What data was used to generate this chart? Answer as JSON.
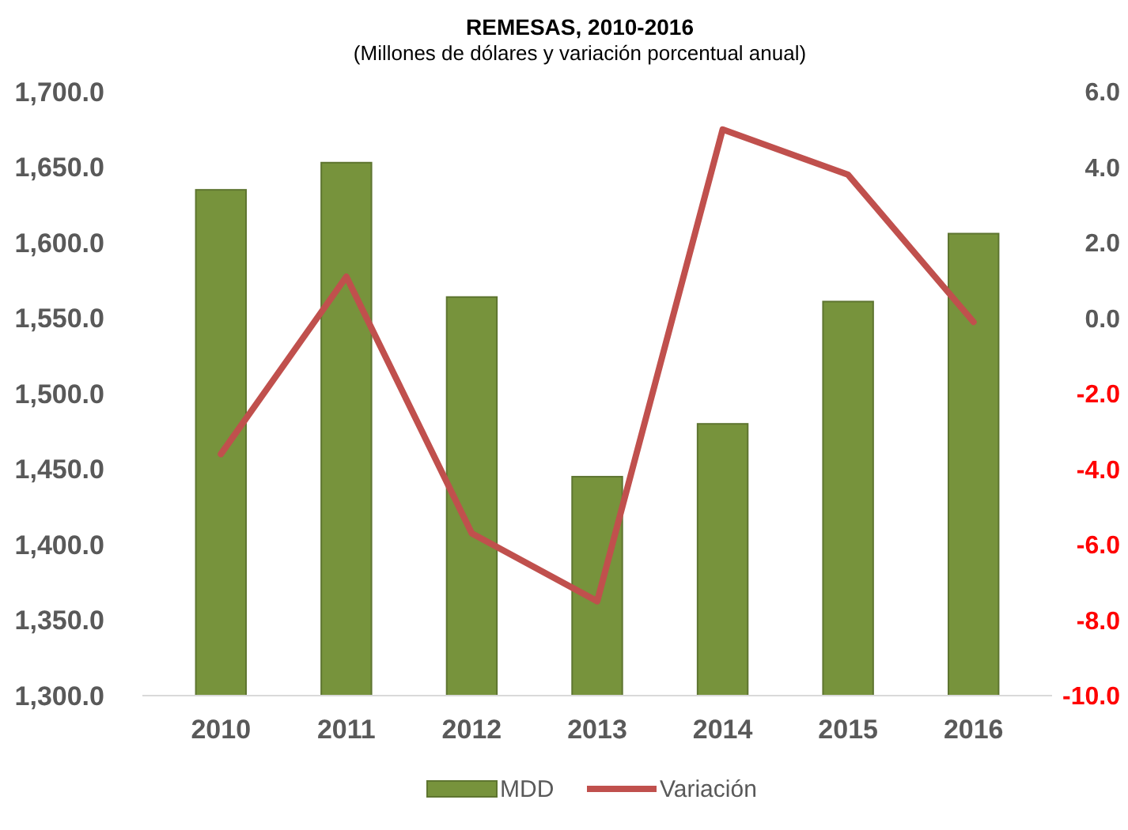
{
  "chart_data": {
    "type": "bar",
    "title": "REMESAS, 2010-2016",
    "subtitle": "(Millones de dólares y variación porcentual anual)",
    "categories": [
      "2010",
      "2011",
      "2012",
      "2013",
      "2014",
      "2015",
      "2016"
    ],
    "series": [
      {
        "name": "MDD",
        "color": "#77933c",
        "values": [
          1635,
          1653,
          1564,
          1445,
          1480,
          1561,
          1606
        ]
      },
      {
        "name": "Variación",
        "type": "line",
        "axis": "y2",
        "color": "#c0504d",
        "values": [
          -3.6,
          1.1,
          -5.7,
          -7.5,
          5.0,
          3.8,
          -0.1
        ]
      }
    ],
    "ylim": [
      1300,
      1700
    ],
    "yticks": [
      {
        "value": 1300,
        "label": "1,300.0"
      },
      {
        "value": 1350,
        "label": "1,350.0"
      },
      {
        "value": 1400,
        "label": "1,400.0"
      },
      {
        "value": 1450,
        "label": "1,450.0"
      },
      {
        "value": 1500,
        "label": "1,500.0"
      },
      {
        "value": 1550,
        "label": "1,550.0"
      },
      {
        "value": 1600,
        "label": "1,600.0"
      },
      {
        "value": 1650,
        "label": "1,650.0"
      },
      {
        "value": 1700,
        "label": "1,700.0"
      }
    ],
    "y2lim": [
      -10,
      6
    ],
    "y2ticks": [
      {
        "value": -10,
        "label": "-10.0"
      },
      {
        "value": -8,
        "label": "-8.0"
      },
      {
        "value": -6,
        "label": "-6.0"
      },
      {
        "value": -4,
        "label": "-4.0"
      },
      {
        "value": -2,
        "label": "-2.0"
      },
      {
        "value": 0,
        "label": "0.0"
      },
      {
        "value": 2,
        "label": "2.0"
      },
      {
        "value": 4,
        "label": "4.0"
      },
      {
        "value": 6,
        "label": "6.0"
      }
    ],
    "grid": false,
    "legend": "bottom",
    "marker": "none",
    "line_style": "solid"
  }
}
